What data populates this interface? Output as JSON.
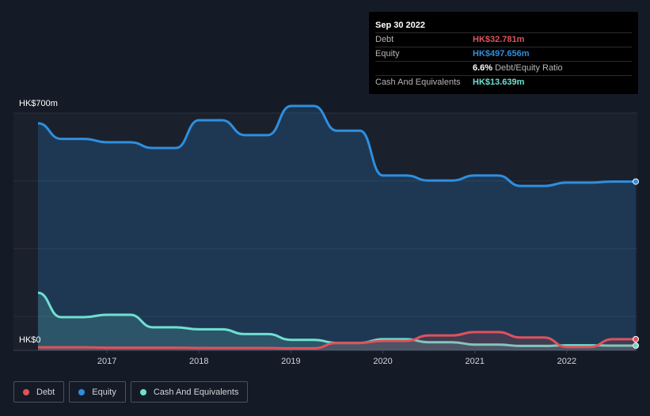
{
  "tooltip": {
    "date": "Sep 30 2022",
    "rows": [
      {
        "label": "Debt",
        "value": "HK$32.781m",
        "color": "#e0525b"
      },
      {
        "label": "Equity",
        "value": "HK$497.656m",
        "color": "#2e8fdf"
      },
      {
        "label": "",
        "value": "6.6%",
        "sub": "Debt/Equity Ratio",
        "color": "#ffffff"
      },
      {
        "label": "Cash And Equivalents",
        "value": "HK$13.639m",
        "color": "#6fe0cf"
      }
    ]
  },
  "legend": [
    {
      "label": "Debt",
      "color": "#e0525b"
    },
    {
      "label": "Equity",
      "color": "#2e8fdf"
    },
    {
      "label": "Cash And Equivalents",
      "color": "#6fe0cf"
    }
  ],
  "chart_data": {
    "type": "line",
    "y_top_label": "HK$700m",
    "y_bottom_label": "HK$0",
    "ylim": [
      0,
      700
    ],
    "xlim": [
      2016.25,
      2022.75
    ],
    "x_ticks": [
      "2017",
      "2018",
      "2019",
      "2020",
      "2021",
      "2022"
    ],
    "grid": true,
    "legend_position": "bottom-left",
    "series": [
      {
        "name": "Equity",
        "color": "#2e8fdf",
        "fill": true,
        "x": [
          2016.25,
          2016.5,
          2016.75,
          2017.0,
          2017.25,
          2017.5,
          2017.75,
          2018.0,
          2018.25,
          2018.5,
          2018.75,
          2019.0,
          2019.25,
          2019.5,
          2019.75,
          2020.0,
          2020.25,
          2020.5,
          2020.75,
          2021.0,
          2021.25,
          2021.5,
          2021.75,
          2022.0,
          2022.25,
          2022.5,
          2022.75
        ],
        "values": [
          670,
          624,
          624,
          614,
          614,
          597,
          597,
          679,
          679,
          635,
          635,
          721,
          721,
          648,
          648,
          516,
          516,
          501,
          501,
          516,
          516,
          485,
          485,
          495,
          495,
          498,
          498
        ]
      },
      {
        "name": "Cash And Equivalents",
        "color": "#6fe0cf",
        "fill": true,
        "x": [
          2016.25,
          2016.5,
          2016.75,
          2017.0,
          2017.25,
          2017.5,
          2017.75,
          2018.0,
          2018.25,
          2018.5,
          2018.75,
          2019.0,
          2019.25,
          2019.5,
          2019.75,
          2020.0,
          2020.25,
          2020.5,
          2020.75,
          2021.0,
          2021.25,
          2021.5,
          2021.75,
          2022.0,
          2022.25,
          2022.5,
          2022.75
        ],
        "values": [
          170,
          98,
          98,
          105,
          105,
          68,
          68,
          62,
          62,
          48,
          48,
          31,
          31,
          22,
          22,
          33,
          33,
          24,
          24,
          17,
          17,
          13,
          13,
          15,
          15,
          14,
          14
        ]
      },
      {
        "name": "Debt",
        "color": "#e0525b",
        "fill": true,
        "x": [
          2016.25,
          2016.5,
          2016.75,
          2017.0,
          2017.25,
          2017.5,
          2017.75,
          2018.0,
          2018.25,
          2018.5,
          2018.75,
          2019.0,
          2019.25,
          2019.5,
          2019.75,
          2020.0,
          2020.25,
          2020.5,
          2020.75,
          2021.0,
          2021.25,
          2021.5,
          2021.75,
          2022.0,
          2022.25,
          2022.5,
          2022.75
        ],
        "values": [
          9,
          9,
          9,
          8,
          8,
          8,
          8,
          7,
          7,
          7,
          7,
          6,
          6,
          22,
          22,
          28,
          28,
          44,
          44,
          54,
          54,
          38,
          38,
          10,
          10,
          33,
          33
        ]
      }
    ]
  }
}
